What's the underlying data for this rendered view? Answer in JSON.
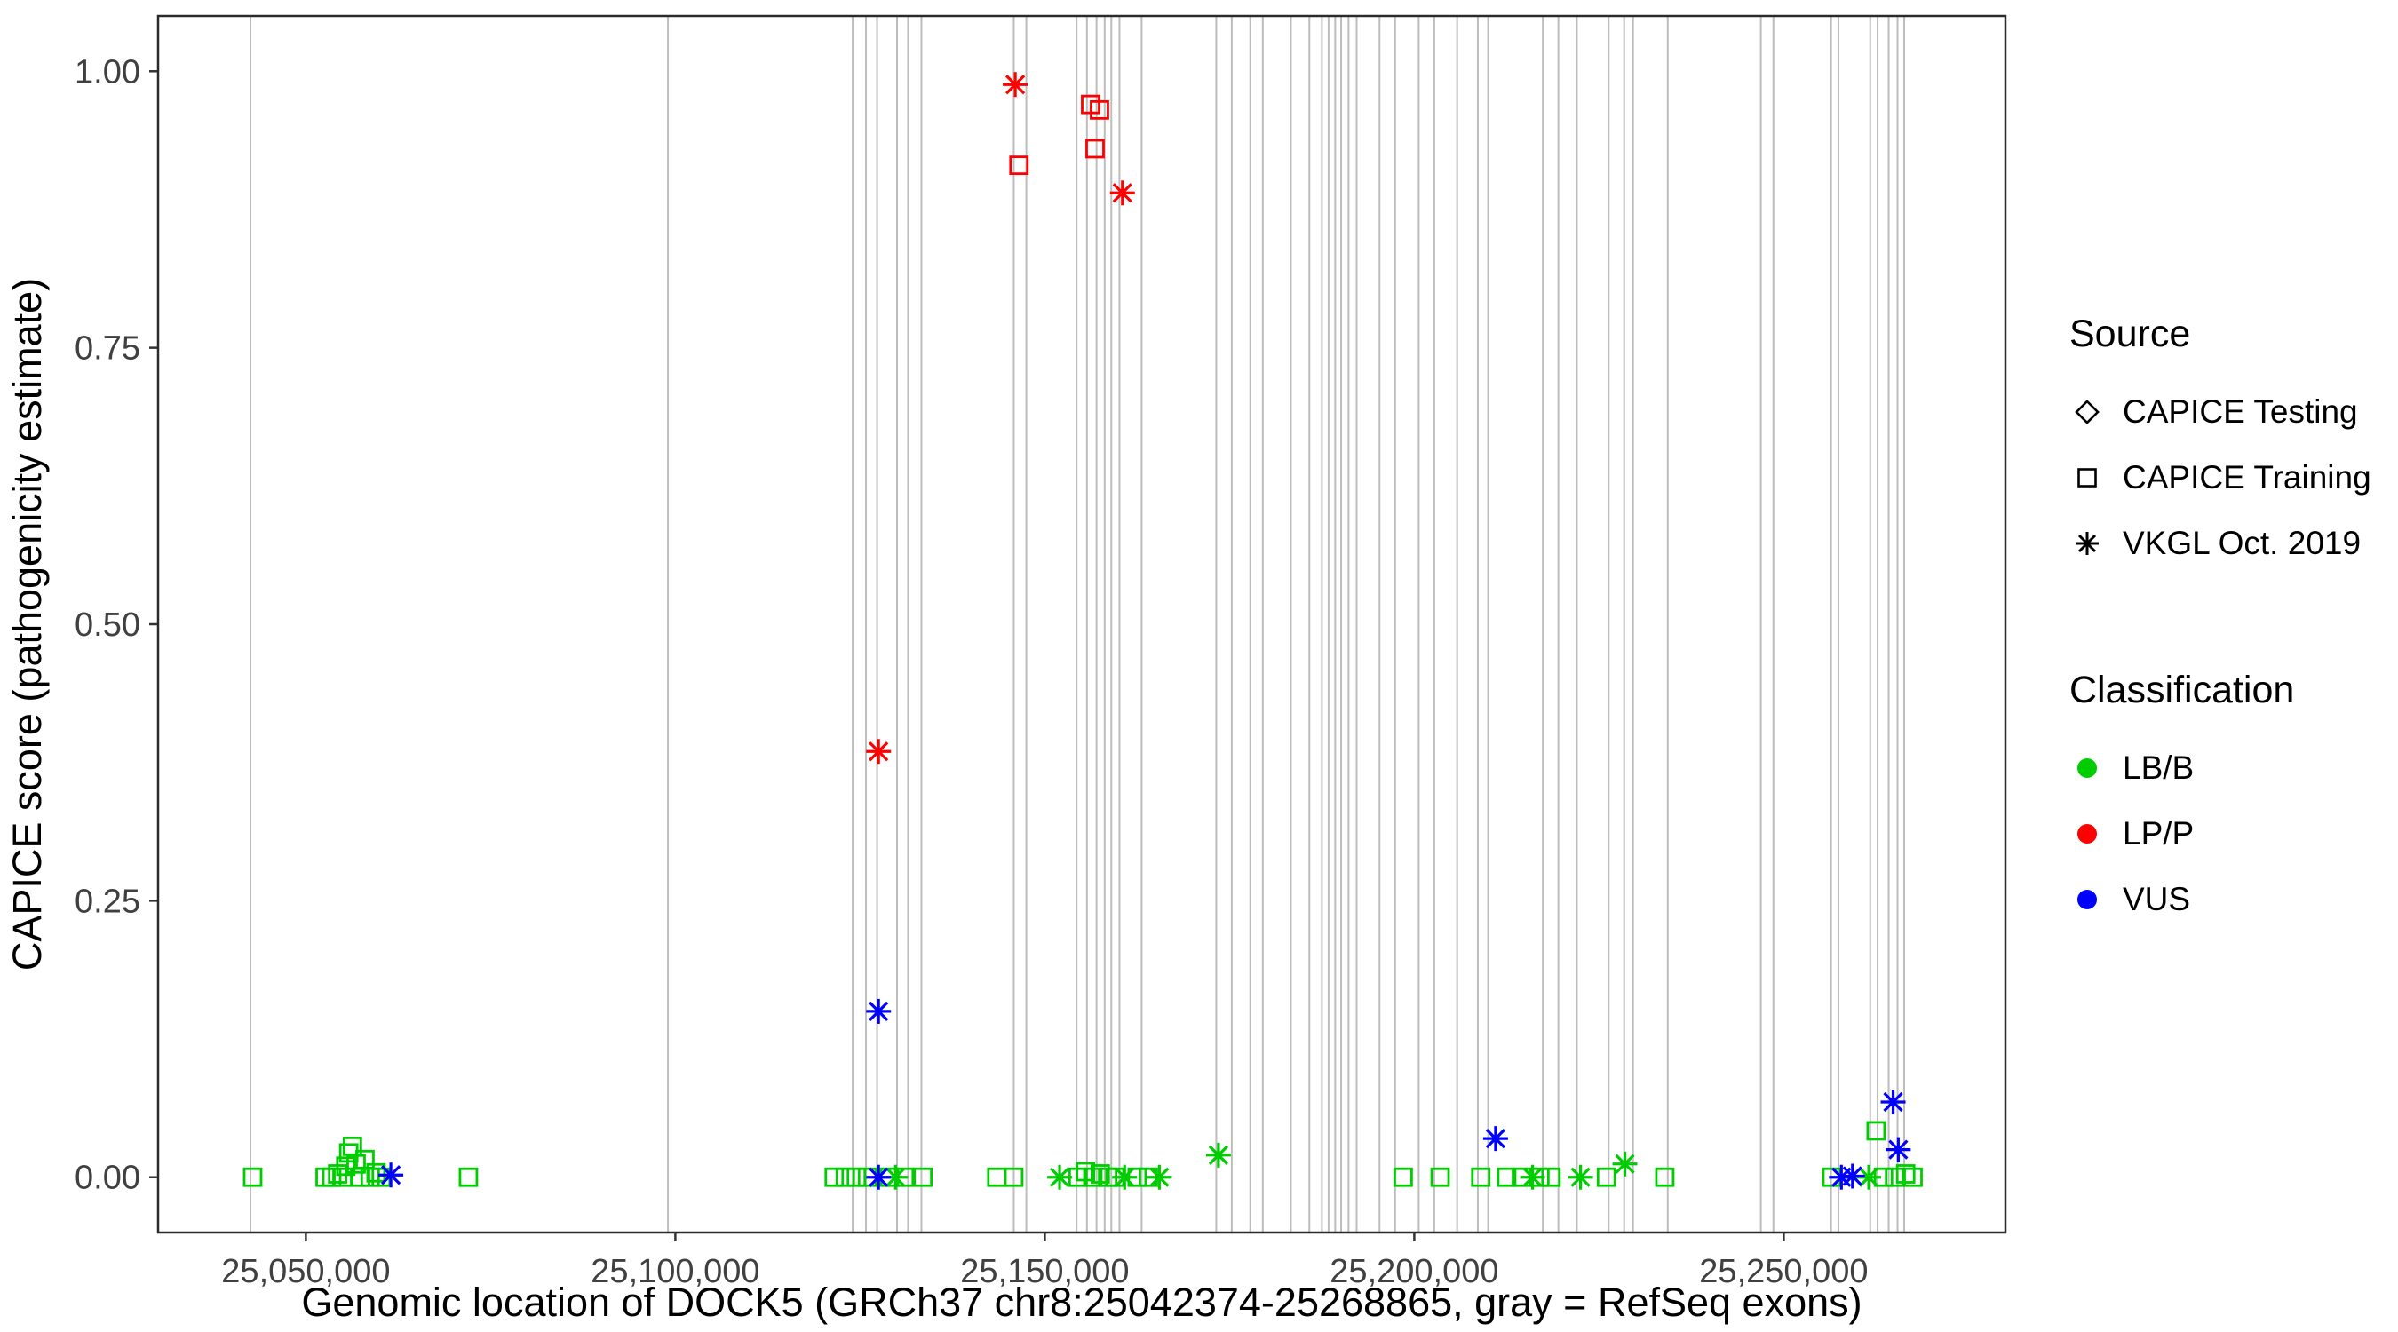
{
  "legend": {
    "source": {
      "title": "Source",
      "items": [
        {
          "label": "CAPICE Testing",
          "shape": "diamond",
          "color": "#000000"
        },
        {
          "label": "CAPICE Training",
          "shape": "square",
          "color": "#000000"
        },
        {
          "label": "VKGL Oct. 2019",
          "shape": "asterisk",
          "color": "#000000"
        }
      ]
    },
    "classification": {
      "title": "Classification",
      "items": [
        {
          "label": "LB/B",
          "shape": "circle",
          "color": "#00CD00"
        },
        {
          "label": "LP/P",
          "shape": "circle",
          "color": "#FF0000"
        },
        {
          "label": "VUS",
          "shape": "circle",
          "color": "#0000FF"
        }
      ]
    }
  },
  "chart_data": {
    "type": "scatter",
    "title": "",
    "xlabel": "Genomic location of DOCK5 (GRCh37 chr8:25042374-25268865, gray = RefSeq exons)",
    "ylabel": "CAPICE score (pathogenicity estimate)",
    "xlim": [
      25030000,
      25280000
    ],
    "ylim": [
      -0.05,
      1.05
    ],
    "grid": false,
    "legend_position": "right",
    "x_ticks": [
      {
        "value": 25050000,
        "label": "25,050,000"
      },
      {
        "value": 25100000,
        "label": "25,100,000"
      },
      {
        "value": 25150000,
        "label": "25,150,000"
      },
      {
        "value": 25200000,
        "label": "25,200,000"
      },
      {
        "value": 25250000,
        "label": "25,250,000"
      }
    ],
    "y_ticks": [
      {
        "value": 0.0,
        "label": "0.00"
      },
      {
        "value": 0.25,
        "label": "0.25"
      },
      {
        "value": 0.5,
        "label": "0.50"
      },
      {
        "value": 0.75,
        "label": "0.75"
      },
      {
        "value": 1.0,
        "label": "1.00"
      }
    ],
    "exon_color": "#BDBDBD",
    "exon_positions": [
      25042500,
      25099000,
      25124000,
      25125800,
      25127300,
      25130000,
      25131500,
      25133300,
      25145800,
      25147500,
      25154300,
      25155700,
      25157000,
      25158100,
      25159000,
      25160100,
      25163100,
      25173200,
      25175300,
      25177800,
      25179500,
      25183300,
      25185800,
      25187500,
      25188400,
      25189300,
      25190100,
      25191100,
      25192200,
      25195300,
      25197400,
      25200600,
      25202700,
      25205800,
      25208600,
      25210000,
      25217400,
      25219500,
      25222000,
      25226300,
      25228400,
      25229600,
      25234300,
      25246900,
      25248600,
      25256400,
      25257400,
      25261700,
      25262700,
      25264200,
      25265400,
      25266300
    ],
    "series": [
      {
        "name": "LB/B CAPICE Training",
        "classification": "LB/B",
        "source": "CAPICE Training",
        "shape": "square",
        "color": "#00CD00",
        "points": [
          [
            25042800,
            0.0
          ],
          [
            25052600,
            0.0
          ],
          [
            25053500,
            0.0
          ],
          [
            25054300,
            0.003
          ],
          [
            25055000,
            0.0
          ],
          [
            25055400,
            0.01
          ],
          [
            25055800,
            0.022
          ],
          [
            25056300,
            0.028
          ],
          [
            25056800,
            0.012
          ],
          [
            25057400,
            0.0
          ],
          [
            25058000,
            0.016
          ],
          [
            25058700,
            0.0
          ],
          [
            25059500,
            0.004
          ],
          [
            25060200,
            0.0
          ],
          [
            25072000,
            0.0
          ],
          [
            25121500,
            0.0
          ],
          [
            25123000,
            0.0
          ],
          [
            25124500,
            0.0
          ],
          [
            25126000,
            0.0
          ],
          [
            25129000,
            0.0
          ],
          [
            25131000,
            0.0
          ],
          [
            25133500,
            0.0
          ],
          [
            25143500,
            0.0
          ],
          [
            25145800,
            0.0
          ],
          [
            25154500,
            0.0
          ],
          [
            25155500,
            0.005
          ],
          [
            25156500,
            0.0
          ],
          [
            25157500,
            0.003
          ],
          [
            25158500,
            0.0
          ],
          [
            25159500,
            0.0
          ],
          [
            25162500,
            0.0
          ],
          [
            25164000,
            0.0
          ],
          [
            25198500,
            0.0
          ],
          [
            25203500,
            0.0
          ],
          [
            25209000,
            0.0
          ],
          [
            25212500,
            0.0
          ],
          [
            25214500,
            0.0
          ],
          [
            25217000,
            0.0
          ],
          [
            25218500,
            0.0
          ],
          [
            25226000,
            0.0
          ],
          [
            25233900,
            0.0
          ],
          [
            25256500,
            0.0
          ],
          [
            25262500,
            0.042
          ],
          [
            25263500,
            0.0
          ],
          [
            25265000,
            0.0
          ],
          [
            25266500,
            0.003
          ],
          [
            25267500,
            0.0
          ]
        ]
      },
      {
        "name": "LB/B VKGL Oct. 2019",
        "classification": "LB/B",
        "source": "VKGL Oct. 2019",
        "shape": "asterisk",
        "color": "#00CD00",
        "points": [
          [
            25129800,
            0.0
          ],
          [
            25152000,
            0.0
          ],
          [
            25160800,
            0.0
          ],
          [
            25165500,
            0.0
          ],
          [
            25173500,
            0.02
          ],
          [
            25216000,
            0.0
          ],
          [
            25222500,
            0.0
          ],
          [
            25228500,
            0.012
          ],
          [
            25261500,
            0.0
          ]
        ]
      },
      {
        "name": "LP/P CAPICE Training",
        "classification": "LP/P",
        "source": "CAPICE Training",
        "shape": "square",
        "color": "#FF0000",
        "points": [
          [
            25146500,
            0.915
          ],
          [
            25156200,
            0.97
          ],
          [
            25157400,
            0.965
          ],
          [
            25156800,
            0.93
          ]
        ]
      },
      {
        "name": "LP/P VKGL Oct. 2019",
        "classification": "LP/P",
        "source": "VKGL Oct. 2019",
        "shape": "asterisk",
        "color": "#FF0000",
        "points": [
          [
            25127500,
            0.385
          ],
          [
            25146000,
            0.988
          ],
          [
            25160500,
            0.89
          ]
        ]
      },
      {
        "name": "VUS VKGL Oct. 2019",
        "classification": "VUS",
        "source": "VKGL Oct. 2019",
        "shape": "asterisk",
        "color": "#0000FF",
        "points": [
          [
            25061500,
            0.002
          ],
          [
            25127500,
            0.15
          ],
          [
            25127500,
            0.0
          ],
          [
            25211000,
            0.035
          ],
          [
            25257800,
            0.0
          ],
          [
            25259300,
            0.001
          ],
          [
            25264800,
            0.068
          ],
          [
            25265500,
            0.025
          ]
        ]
      }
    ]
  }
}
